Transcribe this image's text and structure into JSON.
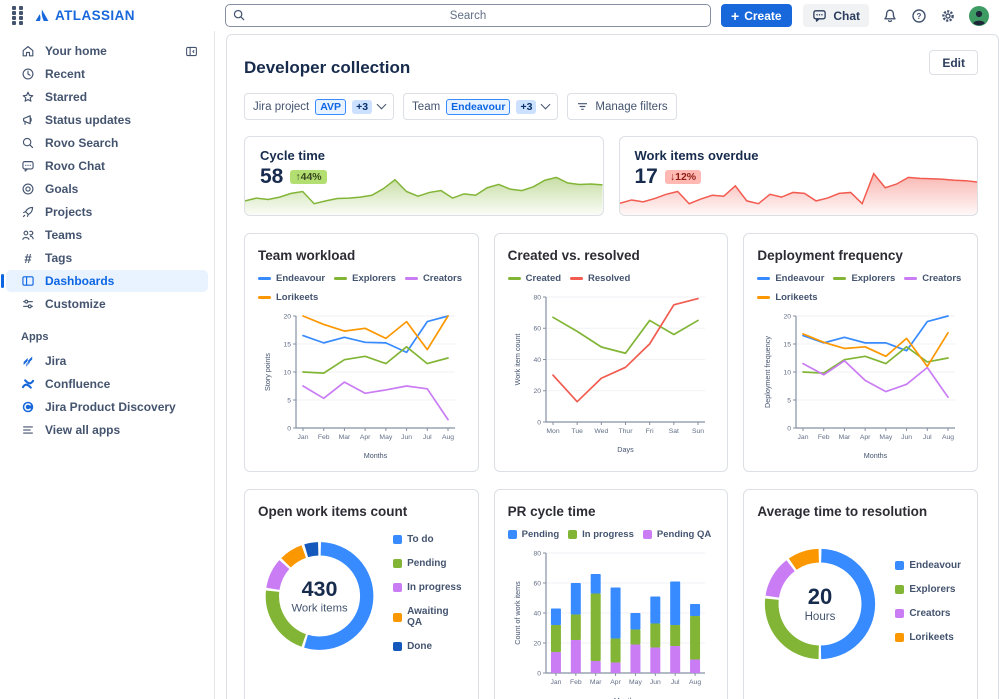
{
  "topbar": {
    "search_placeholder": "Search",
    "create_label": "Create",
    "create_icon": "+",
    "chat_label": "Chat",
    "brand": "ATLASSIAN",
    "brand_color": "#1868DB"
  },
  "sidebar": {
    "items": [
      {
        "label": "Your home"
      },
      {
        "label": "Recent"
      },
      {
        "label": "Starred"
      },
      {
        "label": "Status updates"
      },
      {
        "label": "Rovo Search"
      },
      {
        "label": "Rovo Chat"
      },
      {
        "label": "Goals"
      },
      {
        "label": "Projects"
      },
      {
        "label": "Teams"
      },
      {
        "label": "Tags"
      },
      {
        "label": "Dashboards",
        "selected": true
      },
      {
        "label": "Customize"
      }
    ],
    "apps_heading": "Apps",
    "apps": [
      {
        "label": "Jira"
      },
      {
        "label": "Confluence"
      },
      {
        "label": "Jira Product Discovery"
      },
      {
        "label": "View all apps"
      }
    ]
  },
  "page": {
    "title": "Developer collection",
    "edit_label": "Edit",
    "filters": {
      "jira_project_label": "Jira project",
      "jira_project_value": "AVP",
      "jira_project_more": "+3",
      "team_label": "Team",
      "team_value": "Endeavour",
      "team_more": "+3",
      "manage_filters_label": "Manage filters"
    }
  },
  "kpis": [
    {
      "title": "Cycle time",
      "value": "58",
      "delta": "↑44%",
      "trend": "up"
    },
    {
      "title": "Work items overdue",
      "value": "17",
      "delta": "↓12%",
      "trend": "down"
    }
  ],
  "chart_data": [
    {
      "type": "area",
      "name": "cycle-time-sparkline",
      "color": "#82B536",
      "ylim": [
        0,
        100
      ],
      "values": [
        30,
        36,
        33,
        38,
        46,
        50,
        24,
        30,
        35,
        36,
        38,
        42,
        56,
        75,
        50,
        40,
        48,
        52,
        36,
        45,
        42,
        58,
        65,
        55,
        52,
        60,
        74,
        80,
        68,
        65,
        66,
        64
      ]
    },
    {
      "type": "area",
      "name": "work-items-overdue-sparkline",
      "color": "#F15B50",
      "ylim": [
        0,
        100
      ],
      "values": [
        25,
        32,
        28,
        35,
        44,
        50,
        24,
        34,
        42,
        40,
        62,
        30,
        24,
        44,
        38,
        48,
        46,
        30,
        36,
        46,
        48,
        24,
        88,
        58,
        66,
        80,
        78,
        77,
        76,
        74,
        73,
        70
      ]
    },
    {
      "type": "line",
      "title": "Team workload",
      "categories": [
        "Jan",
        "Feb",
        "Mar",
        "Apr",
        "May",
        "Jun",
        "Jul",
        "Aug"
      ],
      "xlabel": "Months",
      "ylabel": "Story points",
      "ylim": [
        0,
        20
      ],
      "yticks": [
        0,
        5,
        10,
        15,
        20
      ],
      "series": [
        {
          "name": "Endeavour",
          "color": "#388BFF",
          "values": [
            16.5,
            15.2,
            16.2,
            15.3,
            15.2,
            13.5,
            19,
            20
          ]
        },
        {
          "name": "Explorers",
          "color": "#82B536",
          "values": [
            10,
            9.8,
            12.2,
            12.8,
            11.5,
            14.5,
            11.5,
            12.5
          ]
        },
        {
          "name": "Creators",
          "color": "#C97CF4",
          "values": [
            7.5,
            5.3,
            8.2,
            6.2,
            6.8,
            7.5,
            7,
            1.5
          ]
        },
        {
          "name": "Lorikeets",
          "color": "#FB9700",
          "values": [
            20,
            18.5,
            17.3,
            17.8,
            16,
            19,
            14,
            20
          ]
        }
      ]
    },
    {
      "type": "line",
      "title": "Created vs. resolved",
      "categories": [
        "Mon",
        "Tue",
        "Wed",
        "Thur",
        "Fri",
        "Sat",
        "Sun"
      ],
      "xlabel": "Days",
      "ylabel": "Work item count",
      "ylim": [
        0,
        80
      ],
      "yticks": [
        0,
        20,
        40,
        60,
        80
      ],
      "series": [
        {
          "name": "Created",
          "color": "#82B536",
          "values": [
            67,
            58,
            48,
            44,
            65,
            56,
            65
          ]
        },
        {
          "name": "Resolved",
          "color": "#F15B50",
          "values": [
            30,
            13,
            28,
            35,
            50,
            75,
            79
          ]
        }
      ]
    },
    {
      "type": "line",
      "title": "Deployment frequency",
      "categories": [
        "Jan",
        "Feb",
        "Mar",
        "Apr",
        "May",
        "Jun",
        "Jul",
        "Aug"
      ],
      "xlabel": "Months",
      "ylabel": "Deployment frequency",
      "ylim": [
        0,
        20
      ],
      "yticks": [
        0,
        5,
        10,
        15,
        20
      ],
      "series": [
        {
          "name": "Endeavour",
          "color": "#388BFF",
          "values": [
            16.5,
            15.2,
            16.2,
            15.2,
            15.2,
            13.8,
            19,
            20
          ]
        },
        {
          "name": "Explorers",
          "color": "#82B536",
          "values": [
            10,
            9.8,
            12.2,
            12.8,
            11.5,
            14.5,
            11.8,
            12.5
          ]
        },
        {
          "name": "Creators",
          "color": "#C97CF4",
          "values": [
            11.5,
            9.5,
            12,
            8.5,
            6.5,
            7.8,
            10.8,
            5.5
          ]
        },
        {
          "name": "Lorikeets",
          "color": "#FB9700",
          "values": [
            16.8,
            15.3,
            14.2,
            14.5,
            12.8,
            16,
            11,
            17
          ]
        }
      ]
    },
    {
      "type": "donut",
      "title": "Open work items count",
      "center_value": "430",
      "center_label": "Work items",
      "slices": [
        {
          "label": "To do",
          "color": "#388BFF",
          "value": 55
        },
        {
          "label": "Pending",
          "color": "#82B536",
          "value": 22
        },
        {
          "label": "In progress",
          "color": "#C97CF4",
          "value": 10
        },
        {
          "label": "Awaiting QA",
          "color": "#FB9700",
          "value": 8
        },
        {
          "label": "Done",
          "color": "#1558BC",
          "value": 5
        }
      ]
    },
    {
      "type": "bar",
      "title": "PR cycle time",
      "categories": [
        "Jan",
        "Feb",
        "Mar",
        "Apr",
        "May",
        "Jun",
        "Jul",
        "Aug"
      ],
      "xlabel": "Months",
      "ylabel": "Count of work items",
      "ylim": [
        0,
        80
      ],
      "yticks": [
        0,
        20,
        40,
        60,
        80
      ],
      "series": [
        {
          "name": "Pending",
          "color": "#388BFF",
          "values": [
            11,
            21,
            13,
            34,
            11,
            18,
            29,
            8
          ]
        },
        {
          "name": "In progress",
          "color": "#82B536",
          "values": [
            18,
            17,
            45,
            16,
            10,
            16,
            14,
            29
          ]
        },
        {
          "name": "Pending QA",
          "color": "#C97CF4",
          "values": [
            14,
            22,
            8,
            7,
            19,
            17,
            18,
            9
          ]
        }
      ]
    },
    {
      "type": "donut",
      "title": "Average time to resolution",
      "center_value": "20",
      "center_label": "Hours",
      "slices": [
        {
          "label": "Endeavour",
          "color": "#388BFF",
          "value": 50
        },
        {
          "label": "Explorers",
          "color": "#82B536",
          "value": 27
        },
        {
          "label": "Creators",
          "color": "#C97CF4",
          "value": 13
        },
        {
          "label": "Lorikeets",
          "color": "#FB9700",
          "value": 10
        }
      ]
    }
  ]
}
